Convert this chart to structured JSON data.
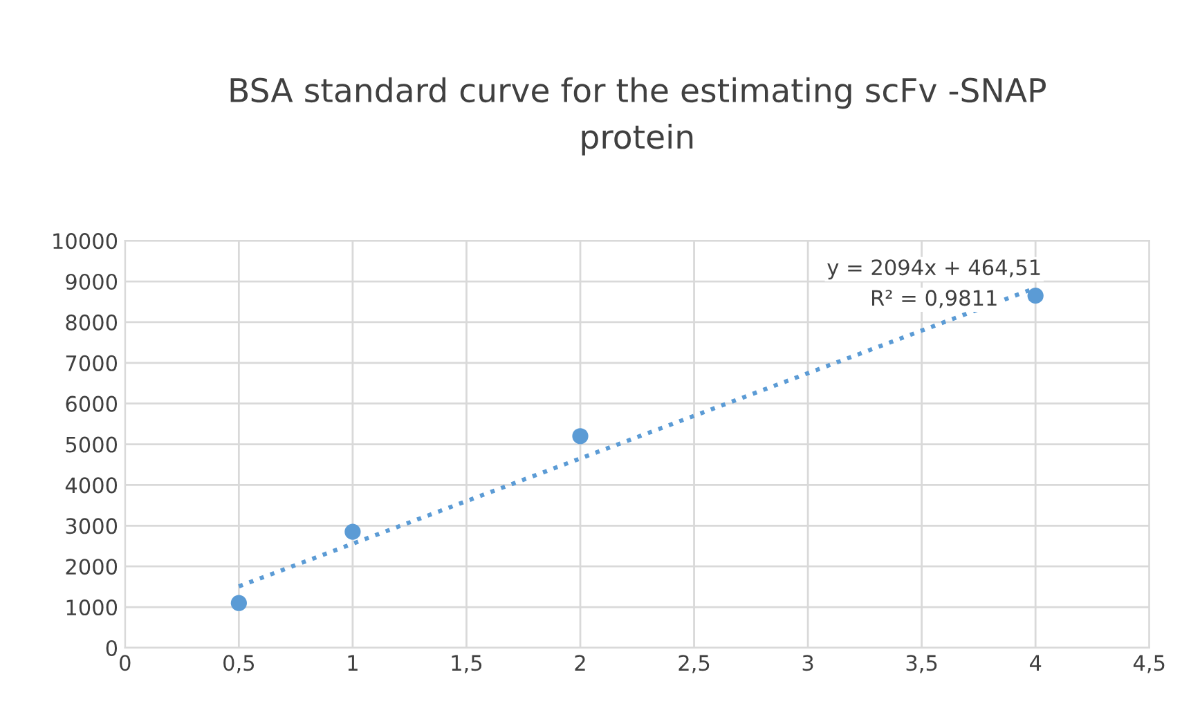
{
  "chart_data": {
    "type": "scatter",
    "title": "BSA standard curve for the estimating scFv -SNAP\nprotein",
    "series": [
      {
        "x": [
          0.5,
          1,
          2,
          4
        ],
        "values": [
          1100,
          2850,
          5200,
          8650
        ],
        "color": "#5b9bd5",
        "marker": "circle"
      },
      {
        "type": "line",
        "x": [
          0.5,
          4
        ],
        "values": [
          1510,
          8840
        ],
        "color": "#5b9bd5",
        "line_style": "dotted",
        "marker": "none"
      }
    ],
    "xlim": [
      0,
      4.5
    ],
    "ylim": [
      0,
      10000
    ],
    "xticks": [
      0,
      {
        "value": 0.5,
        "label": "0,5"
      },
      1,
      {
        "value": 1.5,
        "label": "1,5"
      },
      2,
      {
        "value": 2.5,
        "label": "2,5"
      },
      3,
      {
        "value": 3.5,
        "label": "3,5"
      },
      4,
      {
        "value": 4.5,
        "label": "4,5"
      }
    ],
    "yticks": [
      0,
      1000,
      2000,
      3000,
      4000,
      5000,
      6000,
      7000,
      8000,
      9000,
      10000
    ],
    "grid": true,
    "legend": false,
    "annotations": [
      "y = 2094x + 464,51",
      "R² = 0,9811"
    ]
  }
}
